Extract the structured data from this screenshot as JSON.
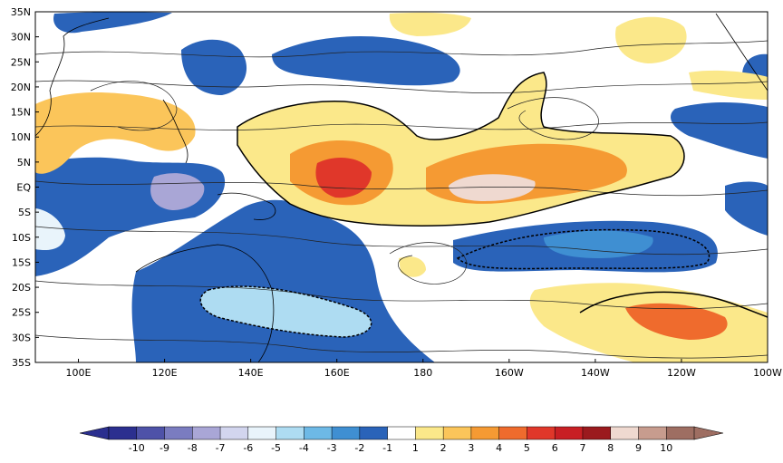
{
  "map": {
    "lat_labels": [
      "35N",
      "30N",
      "25N",
      "20N",
      "15N",
      "10N",
      "5N",
      "EQ",
      "5S",
      "10S",
      "15S",
      "20S",
      "25S",
      "30S",
      "35S"
    ],
    "lon_labels": [
      "100E",
      "120E",
      "140E",
      "160E",
      "180",
      "160W",
      "140W",
      "120W",
      "100W"
    ]
  },
  "colorbar": {
    "ticks": [
      "-10",
      "-9",
      "-8",
      "-7",
      "-6",
      "-5",
      "-4",
      "-3",
      "-2",
      "-1",
      "1",
      "2",
      "3",
      "4",
      "5",
      "6",
      "7",
      "8",
      "9",
      "10"
    ],
    "colors": [
      "#2b2f8f",
      "#4e52a8",
      "#7a7cc0",
      "#a9a6d6",
      "#d2d5ee",
      "#e9f4fb",
      "#aedcf2",
      "#6db9e6",
      "#3f8fd2",
      "#2a63b9",
      "#ffffff",
      "#fbe88a",
      "#fbc55a",
      "#f59a33",
      "#ef6b2d",
      "#e0372a",
      "#c81f24",
      "#9b1a1e",
      "#efd9d0",
      "#c79c8e",
      "#9e6e62"
    ],
    "left_arrow_color": "#2b2f8f",
    "right_arrow_color": "#9e6e62"
  },
  "colors": {
    "neg_dark": "#2a63b9",
    "neg_mid": "#3f8fd2",
    "neg_light": "#6db9e6",
    "neg_pale": "#aedcf2",
    "neg_white": "#e9f4fb",
    "neg_lav": "#a9a6d6",
    "pos_light": "#fbe88a",
    "pos_mid": "#fbc55a",
    "pos_or": "#f59a33",
    "pos_red1": "#ef6b2d",
    "pos_red2": "#e0372a",
    "pos_pink": "#efd9d0"
  }
}
